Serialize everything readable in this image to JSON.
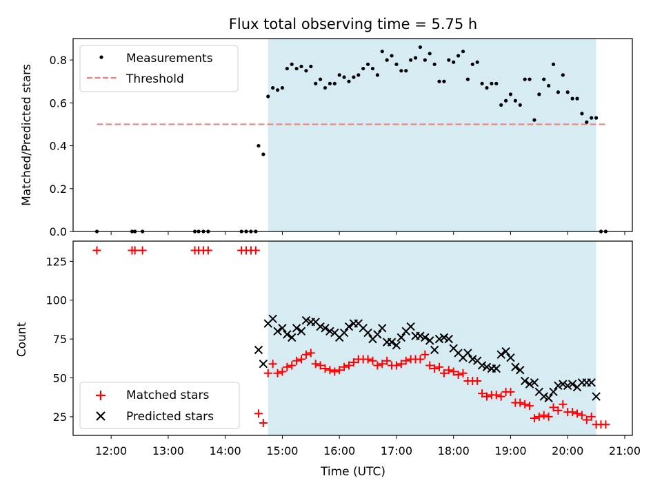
{
  "chart_data": [
    {
      "type": "scatter",
      "title": "Flux total observing time = 5.75 h",
      "xlabel": "",
      "ylabel": "Matched/Predicted stars",
      "xlim": [
        "11:20",
        "21:08"
      ],
      "ylim": [
        0,
        0.9
      ],
      "yticks": [
        "0.0",
        "0.2",
        "0.4",
        "0.6",
        "0.8"
      ],
      "ytick_values": [
        0,
        0.2,
        0.4,
        0.6,
        0.8
      ],
      "shaded_span": [
        "14:45",
        "20:30"
      ],
      "legend": {
        "placement": "top-left",
        "items": [
          "Measurements",
          "Threshold"
        ]
      },
      "series": [
        {
          "name": "Measurements",
          "color": "#000000",
          "points": [
            [
              "11:45",
              0
            ],
            [
              "12:22",
              0
            ],
            [
              "12:25",
              0
            ],
            [
              "12:33",
              0
            ],
            [
              "13:28",
              0
            ],
            [
              "13:32",
              0
            ],
            [
              "13:37",
              0
            ],
            [
              "13:42",
              0
            ],
            [
              "14:17",
              0
            ],
            [
              "14:22",
              0
            ],
            [
              "14:27",
              0
            ],
            [
              "14:32",
              0
            ],
            [
              "14:35",
              0.4
            ],
            [
              "14:40",
              0.36
            ],
            [
              "14:45",
              0.63
            ],
            [
              "14:50",
              0.67
            ],
            [
              "14:55",
              0.66
            ],
            [
              "15:00",
              0.67
            ],
            [
              "15:05",
              0.76
            ],
            [
              "15:10",
              0.78
            ],
            [
              "15:15",
              0.76
            ],
            [
              "15:20",
              0.77
            ],
            [
              "15:25",
              0.75
            ],
            [
              "15:30",
              0.77
            ],
            [
              "15:35",
              0.69
            ],
            [
              "15:40",
              0.71
            ],
            [
              "15:45",
              0.67
            ],
            [
              "15:50",
              0.69
            ],
            [
              "15:55",
              0.69
            ],
            [
              "16:00",
              0.73
            ],
            [
              "16:05",
              0.72
            ],
            [
              "16:10",
              0.7
            ],
            [
              "16:15",
              0.72
            ],
            [
              "16:20",
              0.73
            ],
            [
              "16:25",
              0.76
            ],
            [
              "16:30",
              0.78
            ],
            [
              "16:35",
              0.76
            ],
            [
              "16:40",
              0.73
            ],
            [
              "16:45",
              0.84
            ],
            [
              "16:50",
              0.8
            ],
            [
              "16:55",
              0.82
            ],
            [
              "17:00",
              0.78
            ],
            [
              "17:05",
              0.75
            ],
            [
              "17:10",
              0.75
            ],
            [
              "17:15",
              0.8
            ],
            [
              "17:20",
              0.81
            ],
            [
              "17:25",
              0.86
            ],
            [
              "17:30",
              0.8
            ],
            [
              "17:35",
              0.83
            ],
            [
              "17:40",
              0.78
            ],
            [
              "17:45",
              0.7
            ],
            [
              "17:50",
              0.7
            ],
            [
              "17:55",
              0.8
            ],
            [
              "18:00",
              0.79
            ],
            [
              "18:05",
              0.82
            ],
            [
              "18:10",
              0.84
            ],
            [
              "18:15",
              0.71
            ],
            [
              "18:20",
              0.78
            ],
            [
              "18:25",
              0.79
            ],
            [
              "18:30",
              0.69
            ],
            [
              "18:35",
              0.67
            ],
            [
              "18:40",
              0.69
            ],
            [
              "18:45",
              0.69
            ],
            [
              "18:50",
              0.59
            ],
            [
              "18:55",
              0.61
            ],
            [
              "19:00",
              0.64
            ],
            [
              "19:05",
              0.61
            ],
            [
              "19:10",
              0.59
            ],
            [
              "19:15",
              0.71
            ],
            [
              "19:20",
              0.71
            ],
            [
              "19:25",
              0.52
            ],
            [
              "19:30",
              0.64
            ],
            [
              "19:35",
              0.71
            ],
            [
              "19:40",
              0.68
            ],
            [
              "19:45",
              0.78
            ],
            [
              "19:50",
              0.65
            ],
            [
              "19:55",
              0.73
            ],
            [
              "20:00",
              0.65
            ],
            [
              "20:05",
              0.62
            ],
            [
              "20:10",
              0.62
            ],
            [
              "20:15",
              0.55
            ],
            [
              "20:20",
              0.51
            ],
            [
              "20:25",
              0.53
            ],
            [
              "20:30",
              0.53
            ],
            [
              "20:35",
              0
            ],
            [
              "20:40",
              0
            ]
          ]
        },
        {
          "name": "Threshold",
          "color": "#f08080",
          "style": "dashed",
          "x": [
            "11:45",
            "20:42"
          ],
          "y": [
            0.5,
            0.5
          ]
        }
      ]
    },
    {
      "type": "scatter",
      "title": "",
      "xlabel": "Time (UTC)",
      "ylabel": "Count",
      "xlim": [
        "11:20",
        "21:08"
      ],
      "ylim": [
        13,
        138
      ],
      "xticks": [
        "12:00",
        "13:00",
        "14:00",
        "15:00",
        "16:00",
        "17:00",
        "18:00",
        "19:00",
        "20:00",
        "21:00"
      ],
      "yticks": [
        "25",
        "50",
        "75",
        "100",
        "125"
      ],
      "ytick_values": [
        25,
        50,
        75,
        100,
        125
      ],
      "shaded_span": [
        "14:45",
        "20:30"
      ],
      "legend": {
        "placement": "bottom-left",
        "items": [
          "Matched stars",
          "Predicted stars"
        ]
      },
      "series": [
        {
          "name": "Matched stars",
          "color": "#ff0000",
          "marker": "plus",
          "points": [
            [
              "11:45",
              132
            ],
            [
              "12:22",
              132
            ],
            [
              "12:25",
              132
            ],
            [
              "12:33",
              132
            ],
            [
              "13:28",
              132
            ],
            [
              "13:32",
              132
            ],
            [
              "13:37",
              132
            ],
            [
              "13:42",
              132
            ],
            [
              "14:17",
              132
            ],
            [
              "14:22",
              132
            ],
            [
              "14:27",
              132
            ],
            [
              "14:32",
              132
            ],
            [
              "14:35",
              27
            ],
            [
              "14:40",
              21
            ],
            [
              "14:45",
              53
            ],
            [
              "14:50",
              59
            ],
            [
              "14:55",
              53
            ],
            [
              "15:00",
              54
            ],
            [
              "15:05",
              57
            ],
            [
              "15:10",
              58
            ],
            [
              "15:15",
              61
            ],
            [
              "15:20",
              62
            ],
            [
              "15:25",
              65
            ],
            [
              "15:30",
              66
            ],
            [
              "15:35",
              59
            ],
            [
              "15:40",
              58
            ],
            [
              "15:45",
              56
            ],
            [
              "15:50",
              55
            ],
            [
              "15:55",
              54
            ],
            [
              "16:00",
              55
            ],
            [
              "16:05",
              57
            ],
            [
              "16:10",
              58
            ],
            [
              "16:15",
              60
            ],
            [
              "16:20",
              62
            ],
            [
              "16:25",
              62
            ],
            [
              "16:30",
              62
            ],
            [
              "16:35",
              61
            ],
            [
              "16:40",
              58
            ],
            [
              "16:45",
              59
            ],
            [
              "16:50",
              61
            ],
            [
              "16:55",
              58
            ],
            [
              "17:00",
              58
            ],
            [
              "17:05",
              59
            ],
            [
              "17:10",
              61
            ],
            [
              "17:15",
              62
            ],
            [
              "17:20",
              62
            ],
            [
              "17:25",
              62
            ],
            [
              "17:30",
              65
            ],
            [
              "17:35",
              58
            ],
            [
              "17:40",
              56
            ],
            [
              "17:45",
              57
            ],
            [
              "17:50",
              53
            ],
            [
              "17:55",
              55
            ],
            [
              "18:00",
              54
            ],
            [
              "18:05",
              52
            ],
            [
              "18:10",
              53
            ],
            [
              "18:15",
              48
            ],
            [
              "18:20",
              48
            ],
            [
              "18:25",
              48
            ],
            [
              "18:30",
              40
            ],
            [
              "18:35",
              38
            ],
            [
              "18:40",
              39
            ],
            [
              "18:45",
              39
            ],
            [
              "18:50",
              38
            ],
            [
              "18:55",
              41
            ],
            [
              "19:00",
              41
            ],
            [
              "19:05",
              34
            ],
            [
              "19:10",
              34
            ],
            [
              "19:15",
              33
            ],
            [
              "19:20",
              32
            ],
            [
              "19:25",
              24
            ],
            [
              "19:30",
              25
            ],
            [
              "19:35",
              26
            ],
            [
              "19:40",
              25
            ],
            [
              "19:45",
              31
            ],
            [
              "19:50",
              29
            ],
            [
              "19:55",
              33
            ],
            [
              "20:00",
              28
            ],
            [
              "20:05",
              28
            ],
            [
              "20:10",
              27
            ],
            [
              "20:15",
              26
            ],
            [
              "20:20",
              23
            ],
            [
              "20:25",
              25
            ],
            [
              "20:30",
              20
            ],
            [
              "20:35",
              20
            ],
            [
              "20:40",
              20
            ]
          ]
        },
        {
          "name": "Predicted stars",
          "color": "#000000",
          "marker": "x",
          "points": [
            [
              "14:35",
              68
            ],
            [
              "14:40",
              59
            ],
            [
              "14:45",
              85
            ],
            [
              "14:50",
              88
            ],
            [
              "14:55",
              80
            ],
            [
              "15:00",
              82
            ],
            [
              "15:05",
              78
            ],
            [
              "15:10",
              76
            ],
            [
              "15:15",
              82
            ],
            [
              "15:20",
              80
            ],
            [
              "15:25",
              87
            ],
            [
              "15:30",
              86
            ],
            [
              "15:35",
              86
            ],
            [
              "15:40",
              83
            ],
            [
              "15:45",
              82
            ],
            [
              "15:50",
              80
            ],
            [
              "15:55",
              79
            ],
            [
              "16:00",
              76
            ],
            [
              "16:05",
              79
            ],
            [
              "16:10",
              83
            ],
            [
              "16:15",
              85
            ],
            [
              "16:20",
              85
            ],
            [
              "16:25",
              82
            ],
            [
              "16:30",
              79
            ],
            [
              "16:35",
              75
            ],
            [
              "16:40",
              78
            ],
            [
              "16:45",
              82
            ],
            [
              "16:50",
              73
            ],
            [
              "16:55",
              73
            ],
            [
              "17:00",
              71
            ],
            [
              "17:05",
              76
            ],
            [
              "17:10",
              80
            ],
            [
              "17:15",
              83
            ],
            [
              "17:20",
              77
            ],
            [
              "17:25",
              77
            ],
            [
              "17:30",
              76
            ],
            [
              "17:35",
              74
            ],
            [
              "17:40",
              68
            ],
            [
              "17:45",
              75
            ],
            [
              "17:50",
              76
            ],
            [
              "17:55",
              75
            ],
            [
              "18:00",
              69
            ],
            [
              "18:05",
              66
            ],
            [
              "18:10",
              63
            ],
            [
              "18:15",
              66
            ],
            [
              "18:20",
              62
            ],
            [
              "18:25",
              61
            ],
            [
              "18:30",
              58
            ],
            [
              "18:35",
              57
            ],
            [
              "18:40",
              56
            ],
            [
              "18:45",
              56
            ],
            [
              "18:50",
              65
            ],
            [
              "18:55",
              67
            ],
            [
              "19:00",
              63
            ],
            [
              "19:05",
              57
            ],
            [
              "19:10",
              55
            ],
            [
              "19:15",
              48
            ],
            [
              "19:20",
              46
            ],
            [
              "19:25",
              47
            ],
            [
              "19:30",
              41
            ],
            [
              "19:35",
              38
            ],
            [
              "19:40",
              37
            ],
            [
              "19:45",
              41
            ],
            [
              "19:50",
              45
            ],
            [
              "19:55",
              46
            ],
            [
              "20:00",
              45
            ],
            [
              "20:05",
              46
            ],
            [
              "20:10",
              44
            ],
            [
              "20:15",
              47
            ],
            [
              "20:20",
              47
            ],
            [
              "20:25",
              47
            ],
            [
              "20:30",
              38
            ]
          ]
        }
      ]
    }
  ]
}
